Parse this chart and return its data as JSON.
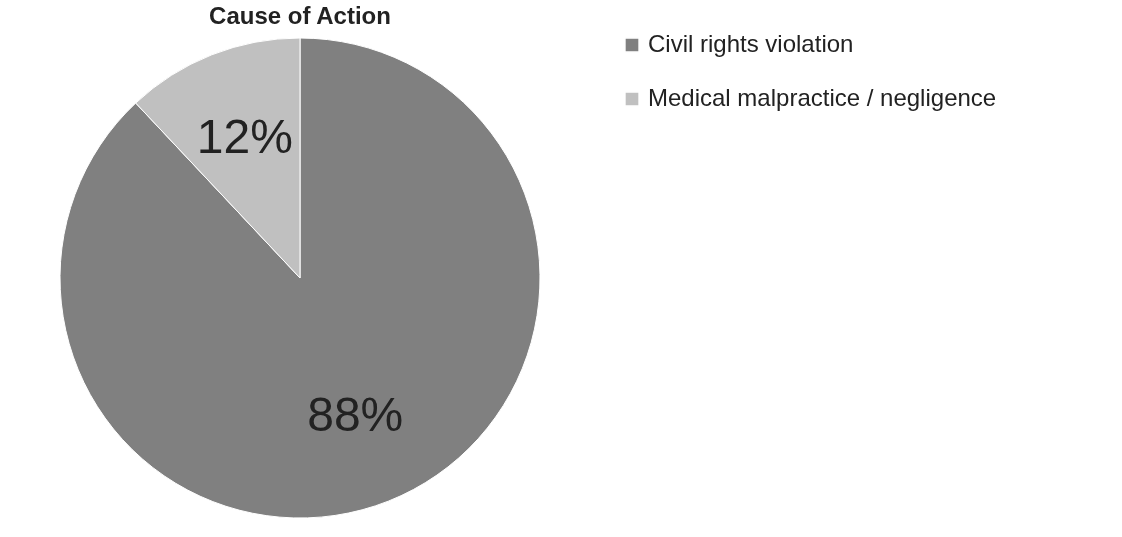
{
  "chart_data": {
    "type": "pie",
    "title": "Cause of Action",
    "categories": [
      "Civil rights violation",
      "Medical malpractice / negligence"
    ],
    "values": [
      88,
      12
    ],
    "colors": [
      "#808080",
      "#c0c0c0"
    ],
    "value_labels": [
      "88%",
      "12%"
    ],
    "legend": "right"
  }
}
